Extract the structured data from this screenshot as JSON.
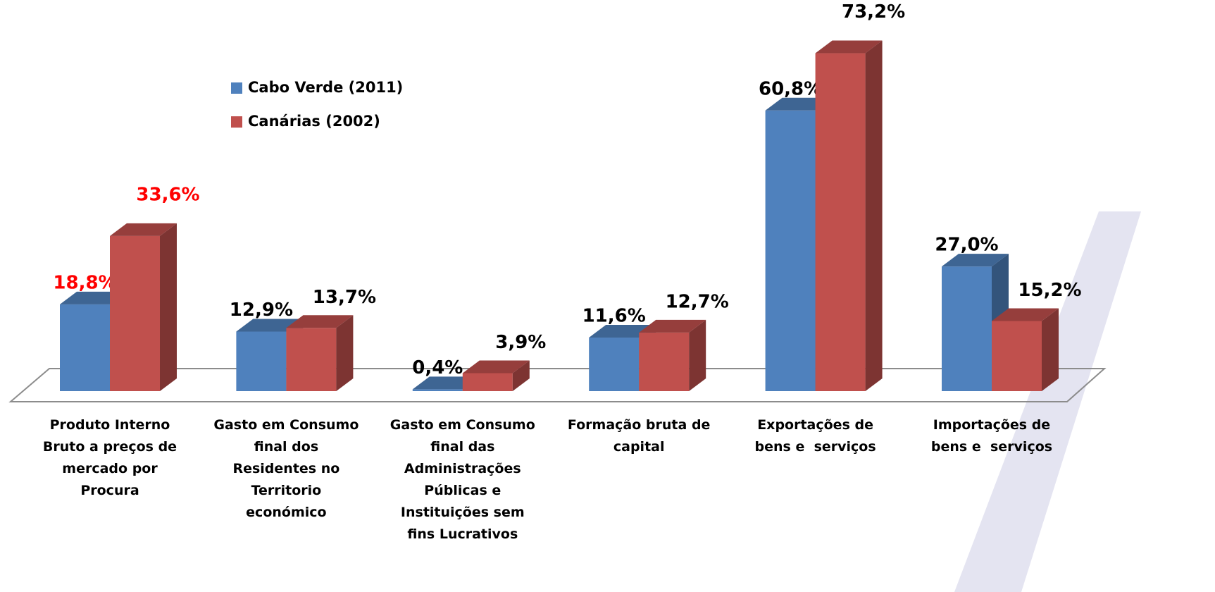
{
  "chart_data": {
    "type": "bar3d",
    "categories": [
      "Produto Interno Bruto a preços de mercado por Procura",
      "Gasto em Consumo final dos Residentes no Territorio económico",
      "Gasto em Consumo final das Administrações Públicas e Instituições sem fins Lucrativos",
      "Formação bruta de capital",
      "Exportações de bens e  serviços",
      "Importações de bens e  serviços"
    ],
    "series": [
      {
        "name": "Cabo Verde (2011)",
        "color": "#4f81bd",
        "values": [
          18.8,
          12.9,
          0.4,
          11.6,
          60.8,
          27.0
        ],
        "value_labels": [
          "18,8%",
          "12,9%",
          "0,4%",
          "11,6%",
          "60,8%",
          "27,0%"
        ],
        "label_colors": [
          "#ff0000",
          "#000000",
          "#000000",
          "#000000",
          "#000000",
          "#000000"
        ]
      },
      {
        "name": "Canárias (2002)",
        "color": "#c0504d",
        "values": [
          33.6,
          13.7,
          3.9,
          12.7,
          73.2,
          15.2
        ],
        "value_labels": [
          "33,6%",
          "13,7%",
          "3,9%",
          "12,7%",
          "73,2%",
          "15,2%"
        ],
        "label_colors": [
          "#ff0000",
          "#000000",
          "#000000",
          "#000000",
          "#000000",
          "#000000"
        ]
      }
    ],
    "legend": "upper-left"
  }
}
